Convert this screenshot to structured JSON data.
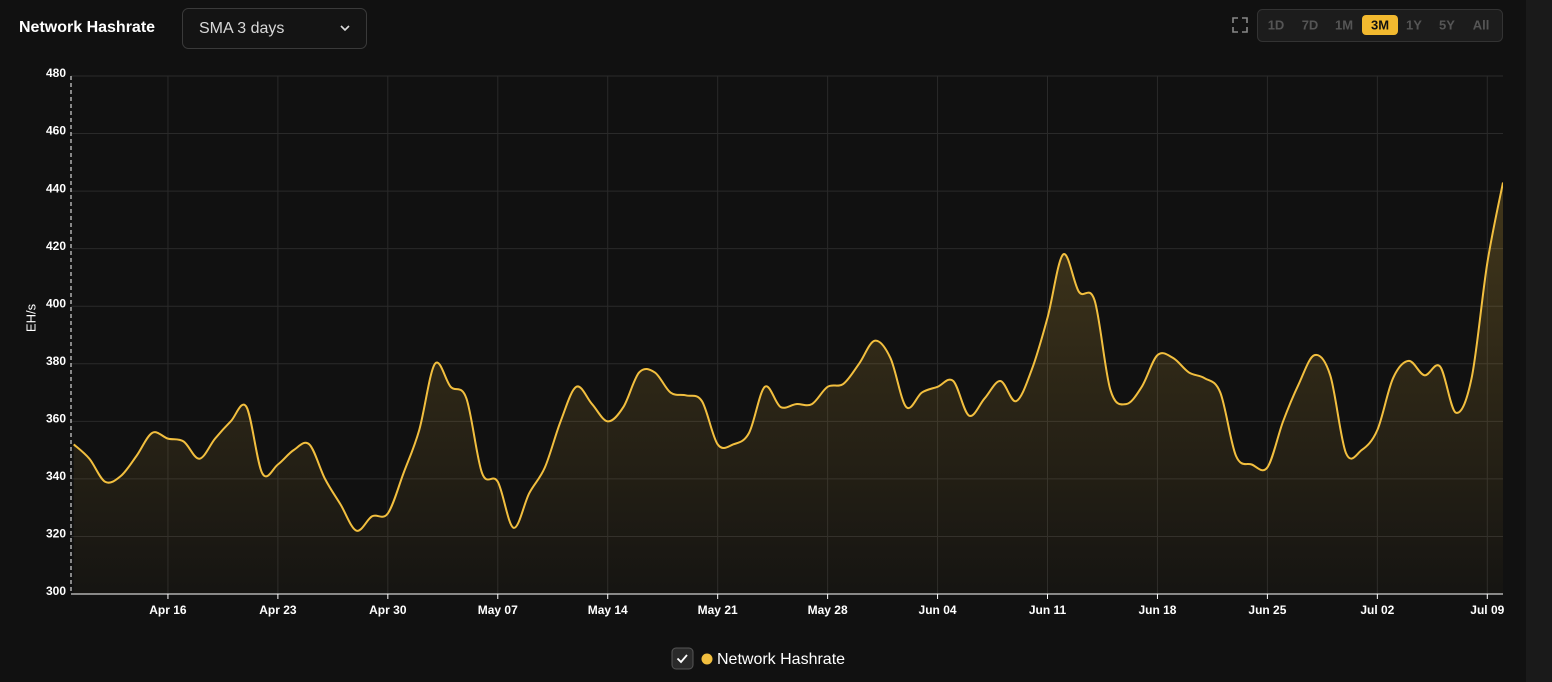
{
  "header": {
    "title": "Network Hashrate",
    "dropdown": "SMA 3 days",
    "ranges": [
      "1D",
      "7D",
      "1M",
      "3M",
      "1Y",
      "5Y",
      "All"
    ],
    "active_range": 3
  },
  "chart_data": {
    "type": "line",
    "y_label": "EH/s",
    "categories": [
      null,
      null,
      null,
      null,
      null,
      null,
      "Apr 16",
      null,
      null,
      null,
      null,
      null,
      null,
      "Apr 23",
      null,
      null,
      null,
      null,
      null,
      null,
      "Apr 30",
      null,
      null,
      null,
      null,
      null,
      null,
      "May 07",
      null,
      null,
      null,
      null,
      null,
      null,
      "May 14",
      null,
      null,
      null,
      null,
      null,
      null,
      "May 21",
      null,
      null,
      null,
      null,
      null,
      null,
      "May 28",
      null,
      null,
      null,
      null,
      null,
      null,
      "Jun 04",
      null,
      null,
      null,
      null,
      null,
      null,
      "Jun 11",
      null,
      null,
      null,
      null,
      null,
      null,
      "Jun 18",
      null,
      null,
      null,
      null,
      null,
      null,
      "Jun 25",
      null,
      null,
      null,
      null,
      null,
      null,
      "Jul 02",
      null,
      null,
      null,
      null,
      null,
      null,
      "Jul 09",
      null
    ],
    "series": [
      {
        "name": "Network Hashrate",
        "color": "#f2bf3f",
        "values": [
          352,
          347,
          339,
          341,
          348,
          356,
          354,
          353,
          347,
          354,
          360,
          365,
          342,
          345,
          350,
          352,
          340,
          331,
          322,
          327,
          328,
          342,
          357,
          380,
          372,
          368,
          342,
          339,
          323,
          335,
          344,
          360,
          372,
          366,
          360,
          365,
          377,
          377,
          370,
          369,
          367,
          352,
          352,
          356,
          372,
          365,
          366,
          366,
          372,
          373,
          380,
          388,
          382,
          365,
          370,
          372,
          374,
          362,
          368,
          374,
          367,
          378,
          396,
          418,
          405,
          402,
          371,
          366,
          372,
          383,
          382,
          377,
          375,
          370,
          348,
          345,
          344,
          360,
          373,
          383,
          376,
          349,
          350,
          357,
          375,
          381,
          376,
          379,
          363,
          375,
          415,
          443
        ]
      }
    ],
    "ylim": [
      300,
      480
    ],
    "yticks": [
      300,
      320,
      340,
      360,
      380,
      400,
      420,
      440,
      460,
      480
    ],
    "grid": true,
    "legend_position": "bottom"
  }
}
